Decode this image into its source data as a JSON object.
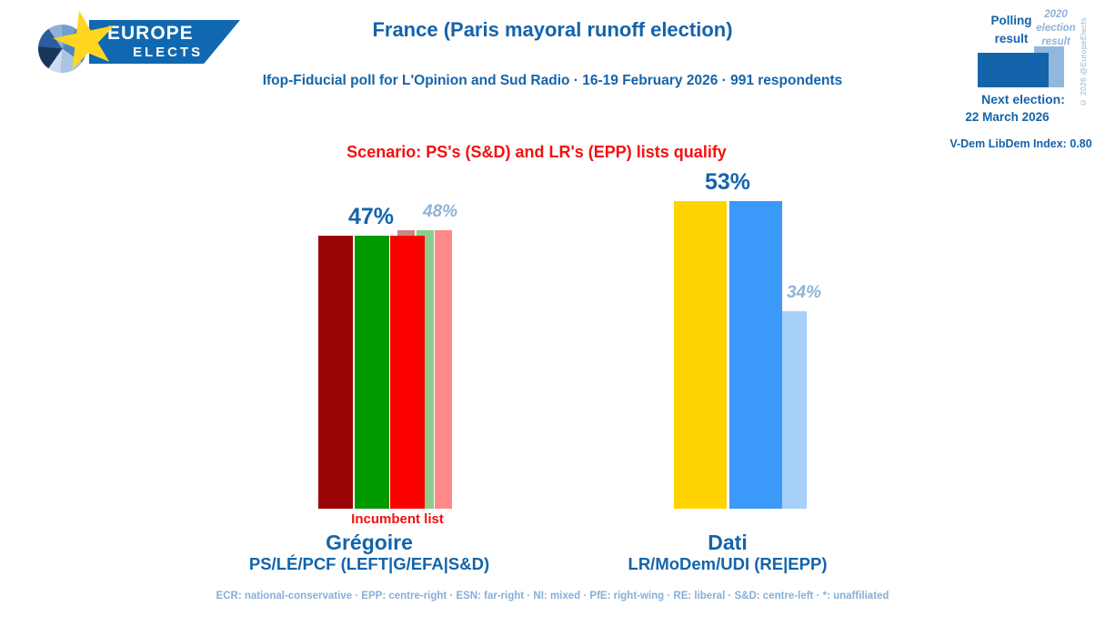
{
  "logo": {
    "line1": "EUROPE",
    "line2": "ELECTS"
  },
  "header": {
    "title": "France (Paris mayoral runoff election)",
    "subtitle": "Ifop-Fiducial poll for L'Opinion and Sud Radio · 16-19 February 2026 · 991 respondents"
  },
  "legend": {
    "polling_label": "Polling result",
    "result_label": "2020 election result",
    "copyright": "© 2026 @EuropeElects",
    "next_election_label": "Next election:",
    "next_election_date": "22 March 2026",
    "vdem_index": "V-Dem LibDem Index: 0.80",
    "polling_swatch_color": "#1464AB",
    "result_swatch_color": "#92B7DC"
  },
  "scenario": "Scenario: PS's (S&D) and LR's (EPP) lists qualify",
  "footer": "ECR: national-conservative · EPP: centre-right · ESN: far-right · NI: mixed · PfE: right-wing · RE: liberal · S&D: centre-left · *: unaffiliated",
  "colors": {
    "brand_blue": "#1464AB",
    "light_blue_text": "#8FB3D9",
    "red_text": "#F40F0F",
    "banner_blue": "#1068B0",
    "star_yellow": "#FFD520"
  },
  "chart_data": {
    "type": "bar",
    "unit": "%",
    "title": "France (Paris mayoral runoff election)",
    "legend_position": "top-right",
    "grid": false,
    "ylim": [
      0,
      55
    ],
    "series_names": [
      "Polling result",
      "2020 election result"
    ],
    "groups": [
      {
        "candidate": "Grégoire",
        "party": "PS/LÉ/PCF (LEFT|G/EFA|S&D)",
        "note": "Incumbent list",
        "polling": {
          "value": 47,
          "label": "47%",
          "colors": [
            "#9B0404",
            "#009A00",
            "#FB0000"
          ]
        },
        "election_2020": {
          "value": 48,
          "label": "48%",
          "colors": [
            "#D08585",
            "#8CCB8C",
            "#FF8888"
          ]
        }
      },
      {
        "candidate": "Dati",
        "party": "LR/MoDem/UDI (RE|EPP)",
        "note": "",
        "polling": {
          "value": 53,
          "label": "53%",
          "colors": [
            "#FFD400",
            "#3B99FA"
          ]
        },
        "election_2020": {
          "value": 34,
          "label": "34%",
          "colors": [
            "#A6CFFA"
          ]
        }
      }
    ]
  }
}
